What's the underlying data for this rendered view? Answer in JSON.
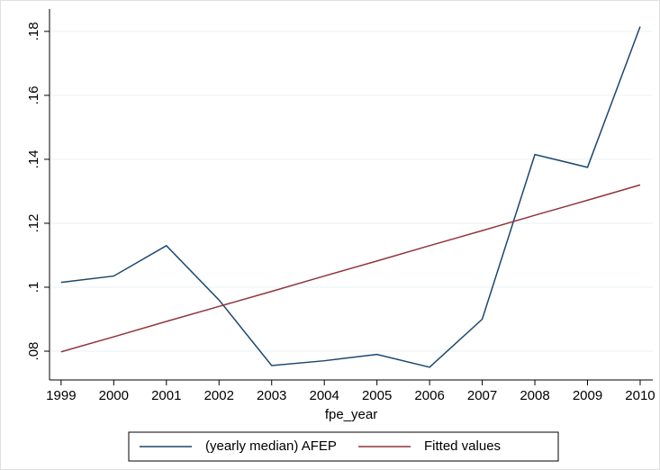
{
  "chart_data": {
    "type": "line",
    "x": [
      1999,
      2000,
      2001,
      2002,
      2003,
      2004,
      2005,
      2006,
      2007,
      2008,
      2009,
      2010
    ],
    "series": [
      {
        "name": "(yearly median) AFEP",
        "color": "#1a476f",
        "values": [
          0.1015,
          0.1035,
          0.113,
          0.096,
          0.0755,
          0.077,
          0.079,
          0.075,
          0.09,
          0.1415,
          0.1375,
          0.1815
        ]
      },
      {
        "name": "Fitted values",
        "color": "#90353b",
        "values": [
          0.0798,
          0.0845,
          0.0893,
          0.094,
          0.0987,
          0.1035,
          0.1082,
          0.113,
          0.1177,
          0.1225,
          0.1272,
          0.132
        ]
      }
    ],
    "xlabel": "fpe_year",
    "xlim": [
      1998.78,
      2010.24
    ],
    "xticks": [
      1999,
      2000,
      2001,
      2002,
      2003,
      2004,
      2005,
      2006,
      2007,
      2008,
      2009,
      2010
    ],
    "ylim": [
      0.071,
      0.187
    ],
    "yticks": [
      {
        "value": 0.08,
        "label": ".08"
      },
      {
        "value": 0.1,
        "label": ".1"
      },
      {
        "value": 0.12,
        "label": ".12"
      },
      {
        "value": 0.14,
        "label": ".14"
      },
      {
        "value": 0.16,
        "label": ".16"
      },
      {
        "value": 0.18,
        "label": ".18"
      }
    ],
    "grid": true,
    "legend": "bottom"
  }
}
